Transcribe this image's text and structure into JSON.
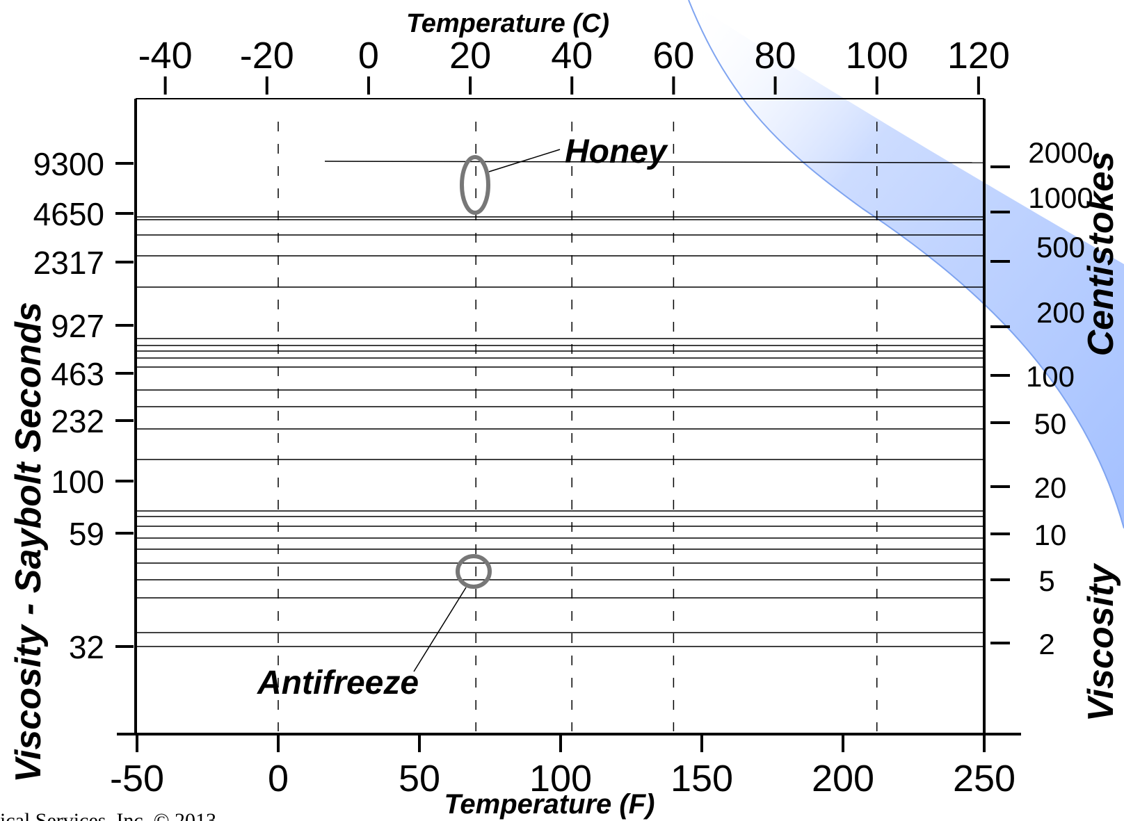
{
  "chart_data": {
    "type": "line",
    "x_bottom": {
      "label": "Temperature (F)",
      "ticks": [
        "-50",
        "0",
        "50",
        "100",
        "150",
        "200",
        "250"
      ],
      "range": [
        -50,
        250
      ]
    },
    "x_top": {
      "label": "Temperature (C)",
      "ticks": [
        "-40",
        "-20",
        "0",
        "20",
        "40",
        "60",
        "80",
        "100",
        "120"
      ]
    },
    "y_left": {
      "label": "Viscosity - Saybolt Seconds",
      "ticks": [
        "9300",
        "4650",
        "2317",
        "927",
        "463",
        "232",
        "100",
        "59",
        "32"
      ]
    },
    "y_right": {
      "label": "Centistokes",
      "label2": "Viscosity",
      "ticks": [
        "2000",
        "1000",
        "500",
        "200",
        "100",
        "50",
        "20",
        "10",
        "5",
        "2"
      ]
    },
    "annotations": [
      {
        "text": "Honey",
        "temperature_f": 70,
        "centistokes": 1500
      },
      {
        "text": "Antifreeze",
        "temperature_f": 70,
        "centistokes": 5
      }
    ],
    "grid": "dashed vertical lines",
    "accent_color": "#99b9ff"
  },
  "footer": "ical Services, Inc. © 2013"
}
